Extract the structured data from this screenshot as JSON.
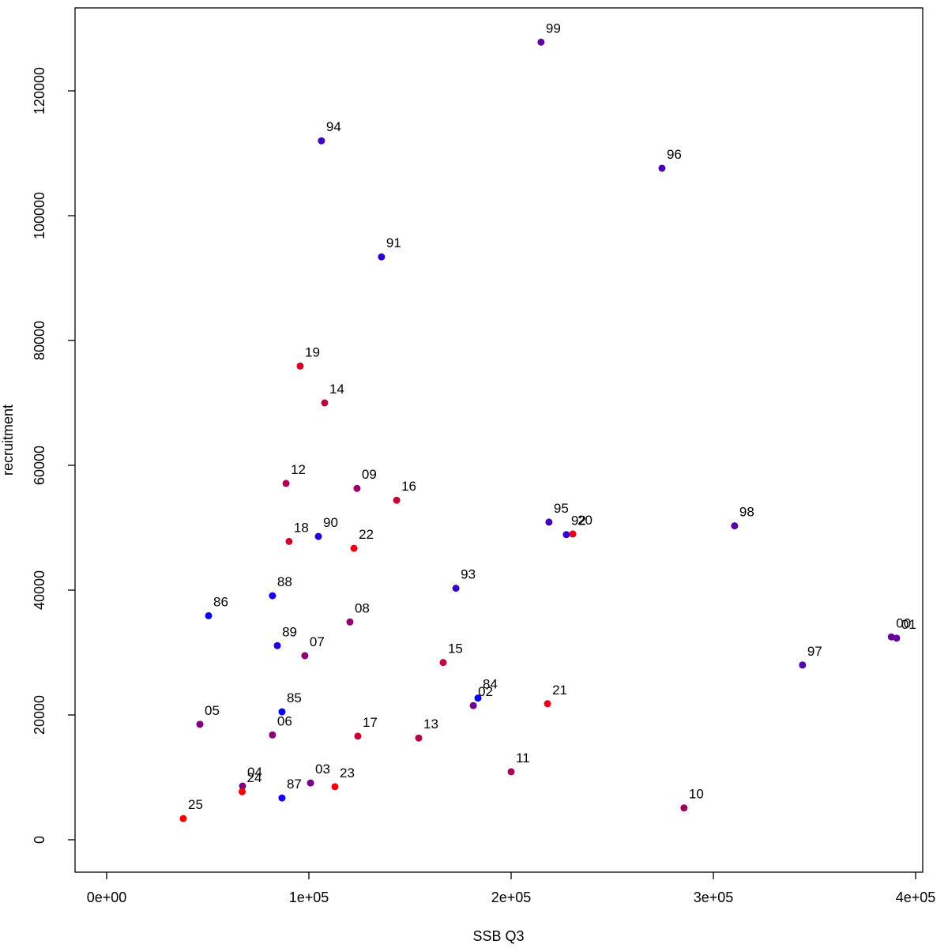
{
  "chart_data": {
    "type": "scatter",
    "title": "",
    "xlabel": "SSB Q3",
    "ylabel": "recruitment",
    "xlim": [
      0,
      400000
    ],
    "ylim": [
      0,
      130000
    ],
    "grid": false,
    "legend": "none",
    "axis_color": "#000000",
    "x_ticks": [
      {
        "value": 0,
        "label": "0e+00"
      },
      {
        "value": 100000,
        "label": "1e+05"
      },
      {
        "value": 200000,
        "label": "2e+05"
      },
      {
        "value": 300000,
        "label": "3e+05"
      },
      {
        "value": 400000,
        "label": "4e+05"
      }
    ],
    "y_ticks": [
      {
        "value": 0,
        "label": "0"
      },
      {
        "value": 20000,
        "label": "20000"
      },
      {
        "value": 40000,
        "label": "40000"
      },
      {
        "value": 60000,
        "label": "60000"
      },
      {
        "value": 80000,
        "label": "80000"
      },
      {
        "value": 100000,
        "label": "100000"
      },
      {
        "value": 120000,
        "label": "120000"
      }
    ],
    "points": [
      {
        "label": "84",
        "x": 183600,
        "y": 22700,
        "color": "#0000FF"
      },
      {
        "label": "85",
        "x": 86700,
        "y": 20500,
        "color": "#0600F9"
      },
      {
        "label": "86",
        "x": 50400,
        "y": 35900,
        "color": "#0C00F3"
      },
      {
        "label": "87",
        "x": 86700,
        "y": 6700,
        "color": "#1300EC"
      },
      {
        "label": "88",
        "x": 82000,
        "y": 39100,
        "color": "#1900E6"
      },
      {
        "label": "89",
        "x": 84400,
        "y": 31100,
        "color": "#1F00E0"
      },
      {
        "label": "90",
        "x": 104700,
        "y": 48600,
        "color": "#2500DA"
      },
      {
        "label": "91",
        "x": 135900,
        "y": 93400,
        "color": "#2C00D3"
      },
      {
        "label": "92",
        "x": 227300,
        "y": 48900,
        "color": "#3200CD"
      },
      {
        "label": "93",
        "x": 172700,
        "y": 40300,
        "color": "#3800C7"
      },
      {
        "label": "94",
        "x": 106200,
        "y": 112000,
        "color": "#3E00C1"
      },
      {
        "label": "95",
        "x": 218700,
        "y": 50900,
        "color": "#4400BB"
      },
      {
        "label": "96",
        "x": 274600,
        "y": 107600,
        "color": "#4B00B4"
      },
      {
        "label": "97",
        "x": 344100,
        "y": 28000,
        "color": "#5100AE"
      },
      {
        "label": "98",
        "x": 310500,
        "y": 50300,
        "color": "#5700A8"
      },
      {
        "label": "99",
        "x": 214800,
        "y": 127800,
        "color": "#5D00A2"
      },
      {
        "label": "00",
        "x": 388000,
        "y": 32500,
        "color": "#64009B"
      },
      {
        "label": "01",
        "x": 390600,
        "y": 32300,
        "color": "#6A0095"
      },
      {
        "label": "02",
        "x": 181300,
        "y": 21500,
        "color": "#70008F"
      },
      {
        "label": "03",
        "x": 100800,
        "y": 9100,
        "color": "#760089"
      },
      {
        "label": "04",
        "x": 67200,
        "y": 8600,
        "color": "#7C0083"
      },
      {
        "label": "05",
        "x": 46100,
        "y": 18500,
        "color": "#83007C"
      },
      {
        "label": "06",
        "x": 82000,
        "y": 16800,
        "color": "#890076"
      },
      {
        "label": "07",
        "x": 98000,
        "y": 29500,
        "color": "#8F0070"
      },
      {
        "label": "08",
        "x": 120300,
        "y": 34900,
        "color": "#95006A"
      },
      {
        "label": "09",
        "x": 123800,
        "y": 56300,
        "color": "#9B0064"
      },
      {
        "label": "10",
        "x": 285500,
        "y": 5100,
        "color": "#A2005D"
      },
      {
        "label": "11",
        "x": 200000,
        "y": 10900,
        "color": "#A80057"
      },
      {
        "label": "12",
        "x": 88700,
        "y": 57100,
        "color": "#AE0051"
      },
      {
        "label": "13",
        "x": 154300,
        "y": 16300,
        "color": "#B4004B"
      },
      {
        "label": "14",
        "x": 107800,
        "y": 70000,
        "color": "#BB0044"
      },
      {
        "label": "15",
        "x": 166400,
        "y": 28400,
        "color": "#C1003E"
      },
      {
        "label": "16",
        "x": 143400,
        "y": 54400,
        "color": "#C70038"
      },
      {
        "label": "17",
        "x": 124200,
        "y": 16600,
        "color": "#CD0032"
      },
      {
        "label": "18",
        "x": 90200,
        "y": 47800,
        "color": "#D3002C"
      },
      {
        "label": "19",
        "x": 95700,
        "y": 75900,
        "color": "#DA0025"
      },
      {
        "label": "20",
        "x": 230500,
        "y": 49000,
        "color": "#E0001F"
      },
      {
        "label": "21",
        "x": 218000,
        "y": 21800,
        "color": "#E60019"
      },
      {
        "label": "22",
        "x": 122300,
        "y": 46700,
        "color": "#EC0013"
      },
      {
        "label": "23",
        "x": 112900,
        "y": 8500,
        "color": "#F3000C"
      },
      {
        "label": "24",
        "x": 67000,
        "y": 7700,
        "color": "#F90006"
      },
      {
        "label": "25",
        "x": 37900,
        "y": 3400,
        "color": "#FF0000"
      }
    ]
  }
}
